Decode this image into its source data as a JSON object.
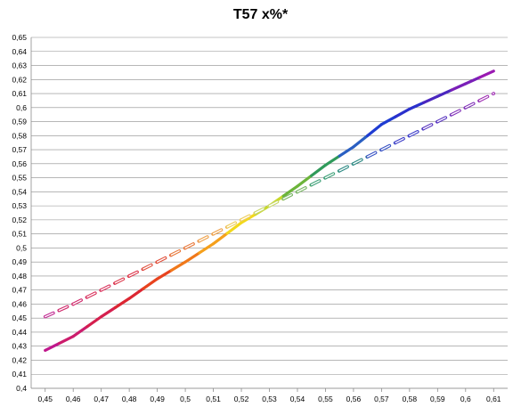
{
  "chart_data": {
    "type": "line",
    "title": "T57 x%*",
    "xlabel": "",
    "ylabel": "",
    "x_ticks": [
      "0,45",
      "0,46",
      "0,47",
      "0,48",
      "0,49",
      "0,5",
      "0,51",
      "0,52",
      "0,53",
      "0,54",
      "0,55",
      "0,56",
      "0,57",
      "0,58",
      "0,59",
      "0,6",
      "0,61"
    ],
    "y_ticks": [
      "0,4",
      "0,41",
      "0,42",
      "0,43",
      "0,44",
      "0,45",
      "0,46",
      "0,47",
      "0,48",
      "0,49",
      "0,5",
      "0,51",
      "0,52",
      "0,53",
      "0,54",
      "0,55",
      "0,56",
      "0,57",
      "0,58",
      "0,59",
      "0,6",
      "0,61",
      "0,62",
      "0,63",
      "0,64",
      "0,65"
    ],
    "xlim": [
      0.445,
      0.615
    ],
    "ylim": [
      0.4,
      0.65
    ],
    "grid": true,
    "legend": "none",
    "series": [
      {
        "style": "solid",
        "x": [
          0.45,
          0.46,
          0.47,
          0.48,
          0.49,
          0.5,
          0.51,
          0.52,
          0.53,
          0.54,
          0.55,
          0.56,
          0.57,
          0.58,
          0.59,
          0.6,
          0.61
        ],
        "y": [
          0.427,
          0.437,
          0.451,
          0.464,
          0.478,
          0.49,
          0.503,
          0.518,
          0.53,
          0.544,
          0.559,
          0.572,
          0.588,
          0.599,
          0.608,
          0.617,
          0.626
        ],
        "colors": [
          "#c0178c",
          "#cc1c6c",
          "#d51f4e",
          "#dc2632",
          "#e8431e",
          "#f0781a",
          "#f5a01c",
          "#f2d81c",
          "#c8d829",
          "#6cb43a",
          "#2f9a5a",
          "#2a5fc2",
          "#1f3cd2",
          "#2a30cc",
          "#4a26bf",
          "#7a1fb8",
          "#9a1ab2"
        ]
      },
      {
        "style": "dashed",
        "x": [
          0.45,
          0.46,
          0.47,
          0.48,
          0.49,
          0.5,
          0.51,
          0.52,
          0.53,
          0.54,
          0.55,
          0.56,
          0.57,
          0.58,
          0.59,
          0.6,
          0.61
        ],
        "y": [
          0.451,
          0.46,
          0.47,
          0.48,
          0.49,
          0.5,
          0.51,
          0.52,
          0.53,
          0.54,
          0.55,
          0.56,
          0.57,
          0.58,
          0.59,
          0.6,
          0.61
        ],
        "colors": [
          "#c02890",
          "#d02a6c",
          "#d8305a",
          "#dc3448",
          "#e0503c",
          "#e8783a",
          "#eea048",
          "#eecc5a",
          "#c8d86a",
          "#78b464",
          "#3ea078",
          "#2e8a84",
          "#3a54c4",
          "#3c3cc8",
          "#5a36c0",
          "#8030b8",
          "#a030b4"
        ]
      }
    ]
  }
}
